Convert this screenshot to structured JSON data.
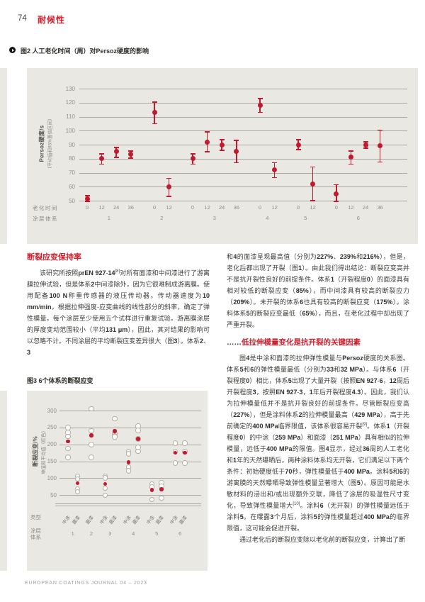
{
  "colors": {
    "accent_red": "#cf1f2c",
    "point_red": "#c2192e",
    "panel_gray": "#e9e8e2"
  },
  "page": {
    "page_number": "74",
    "section_title": "耐候性",
    "footer": "EUROPEAN COATINGS JOURNAL 04 – 2023"
  },
  "article": {
    "heading1": "断裂应变保持率",
    "left_paragraph": "该研究所按照prEN 927-14[8]对所有面漆和中间漆进行了游离膜拉伸试验，但是体系2中间漆除外，因为它很难制成游离膜。使用配备100 N称重传感器的液压传动器。传动器速度为10 mm/min。根据拉伸强度-应变曲线的线性部分的斜率，确定了弹性模量。每个涂层至少使用五个试样进行重复试验。游离膜涂层的厚度变动范围较小（平均131 μm），因此，其对结果的影响可以忽略不计。不同涂层的平均断裂应变差异很大（图3）。体系2、3",
    "right_paragraph_1": "和4的面漆呈现最高值（分别为227%、239%和216%），但是，老化后都出现了开裂（图1）。由此我们得出结论：断裂应变高并不是抗开裂性良好的前提条件。体系1（开裂程度0）的面漆具有相对较低的断裂应变（85%），而中间漆具有较高的断裂应力（209%）。未开裂的体系6也具有较高的断裂应变（175%）。涂料体系5的断裂应变最低（65%），而且，在老化过程中却出现了严重开裂。",
    "heading2_prefix": "……",
    "heading2": "低拉伸模量变化是抗开裂的关键因素",
    "right_paragraph_2": "图4是中涂和面漆的拉伸弹性模量与Persoz硬度的关系图。体系5和6的弹性模量最低（分别为33和32 MPa）。与体系6（开裂程度0）相比，体系5出现了大量开裂（按照EN 927-6，12周后开裂程度3，按照EN 927-3，1年后开裂程度4.3）。因此，我们认为拉伸模量低并不是抗开裂良好的前提条件。尽管断裂应变高（227%），但是涂料体系2的拉伸模量最高（429 MPa），高于先前确定的400 MPa临界限值，该体系很容易开裂[9]。体系1（开裂程度0）的中涂（259 MPa）和面漆（251 MPa）具有相似的拉伸模量，远低于400 MPa的限值。图4显示，经过36周的人工老化和1年的天然曝晒后，两种涂料体系均无开裂，它们满足以下两个条件：初始硬度低于70秒，弹性模量低于400 MPa。涂料5和6的游离膜的天然曝晒导致弹性模量显著增大（图5）。原因可能是水敏材料的浸出和/或出现额外交联，降低了涂层的吸湿性尺寸变化，导致弹性模量增大[10]。涂料6（无开裂）的弹性模量远低于涂料5。在曝露3个月后，涂料5的弹性模量超过400 MPa的临界限值，这可能会促进开裂。",
    "right_paragraph_3": "通过老化后的断裂应变除以老化前的断裂应变，计算出了断"
  },
  "chart_data": [
    {
      "type": "scatter",
      "title": "图2 人工老化时间（周）对Persoz硬度的影响",
      "ylabel": "Persoz硬度/s",
      "ylabel_sub": "（平均值和95%置信区间）",
      "ylim": [
        50,
        130
      ],
      "yticks": [
        130,
        120,
        110,
        100,
        90,
        80,
        70,
        60,
        50
      ],
      "grid": true,
      "error_bars": "95%置信区间",
      "xrow_labels": [
        "老化时间",
        "涂层体系"
      ],
      "groups": [
        {
          "system": "1",
          "points": [
            {
              "week": "0",
              "value": 51.5,
              "ci": [
                49.5,
                53.5
              ]
            },
            {
              "week": "12",
              "value": 80,
              "ci": [
                76,
                83.5
              ]
            },
            {
              "week": "24",
              "value": 85,
              "ci": [
                81,
                88
              ]
            },
            {
              "week": "36",
              "value": 83,
              "ci": [
                80.5,
                85.5
              ]
            }
          ]
        },
        {
          "system": "2",
          "points": [
            {
              "week": "0",
              "value": 113,
              "ci": [
                105,
                120.5
              ]
            },
            {
              "week": "12",
              "value": 60,
              "ci": [
                53,
                66
              ]
            }
          ]
        },
        {
          "system": "3",
          "points": [
            {
              "week": "0",
              "value": 80,
              "ci": [
                76,
                83.5
              ]
            },
            {
              "week": "12",
              "value": 92,
              "ci": [
                85,
                99
              ]
            },
            {
              "week": "24",
              "value": 90,
              "ci": [
                86,
                93.5
              ]
            },
            {
              "week": "36",
              "value": 85,
              "ci": [
                77,
                93
              ]
            }
          ]
        },
        {
          "system": "4",
          "points": [
            {
              "week": "0",
              "value": 118,
              "ci": [
                113,
                123
              ]
            },
            {
              "week": "12",
              "value": 72,
              "ci": [
                66.5,
                77
              ]
            }
          ]
        },
        {
          "system": "5",
          "points": [
            {
              "week": "0",
              "value": 90,
              "ci": [
                86.5,
                93.5
              ]
            },
            {
              "week": "12",
              "value": 62,
              "ci": [
                50,
                74
              ]
            }
          ]
        },
        {
          "system": "6",
          "points": [
            {
              "week": "0",
              "value": 55,
              "ci": [
                49.5,
                61.5
              ]
            },
            {
              "week": "12",
              "value": 81,
              "ci": [
                76,
                85.5
              ]
            },
            {
              "week": "24",
              "value": 90,
              "ci": [
                87.5,
                92
              ]
            },
            {
              "week": "36",
              "value": 89,
              "ci": [
                77.5,
                100.5
              ]
            }
          ]
        }
      ]
    },
    {
      "type": "scatter",
      "title": "图3 6个体系的断裂应变",
      "ylabel": "断裂应变/%",
      "ylabel_sub": "单值和平均值（红色）",
      "ylim": [
        50,
        300
      ],
      "yticks": [
        300,
        250,
        200,
        150,
        100,
        50
      ],
      "grid": true,
      "xrow_labels": [
        "类型",
        "涂层体系"
      ],
      "columns": [
        {
          "system": "1",
          "type": "中涂",
          "mean": 209,
          "singles": [
            250,
            235,
            224,
            188,
            162
          ]
        },
        {
          "system": "1",
          "type": "面漆",
          "mean": 85,
          "singles": [
            106,
            98,
            68,
            60
          ]
        },
        {
          "system": "2",
          "type": "面漆",
          "mean": 227,
          "singles": [
            305,
            240,
            200,
            162
          ]
        },
        {
          "system": "3",
          "type": "中涂",
          "mean": 83,
          "singles": [
            106,
            101,
            71,
            50
          ]
        },
        {
          "system": "3",
          "type": "面漆",
          "mean": 239,
          "singles": [
            276,
            232,
            225,
            223
          ]
        },
        {
          "system": "4",
          "type": "中涂",
          "mean": 147,
          "singles": [
            180,
            172,
            132,
            122
          ]
        },
        {
          "system": "4",
          "type": "面漆",
          "mean": 216,
          "singles": [
            254,
            241,
            216,
            191,
            180
          ]
        },
        {
          "system": "5",
          "type": "中涂",
          "mean": 65,
          "singles": [
            83,
            74,
            37
          ]
        },
        {
          "system": "5",
          "type": "面漆",
          "mean": 67,
          "singles": [
            87,
            77,
            41
          ]
        },
        {
          "system": "6",
          "type": "中涂",
          "mean": 175,
          "singles": [
            204,
            178,
            145
          ]
        },
        {
          "system": "6",
          "type": "面漆",
          "mean": 175,
          "singles": [
            204,
            178,
            145
          ]
        }
      ]
    }
  ]
}
